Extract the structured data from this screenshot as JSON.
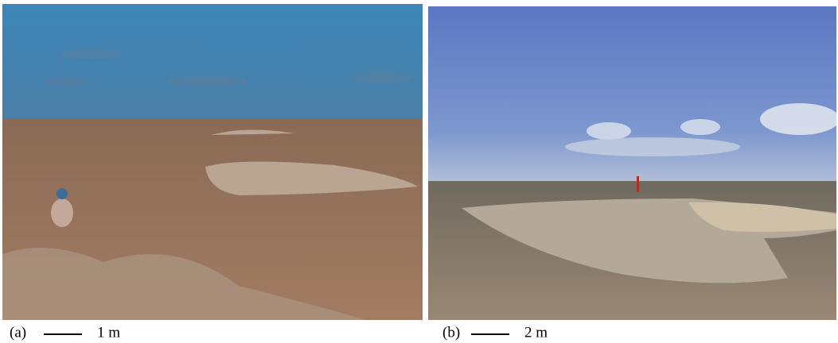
{
  "panels": [
    {
      "label": "(a)",
      "scale": "1 m"
    },
    {
      "label": "(b)",
      "scale": "2 m"
    }
  ]
}
